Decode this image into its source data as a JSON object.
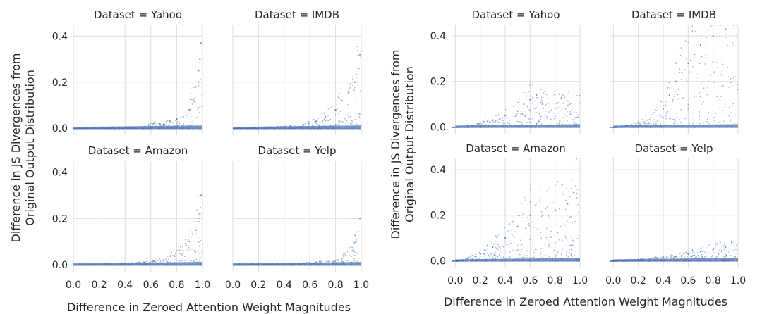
{
  "chart_data": [
    {
      "type": "scatter",
      "figure": "left",
      "xlabel": "Difference in Zeroed Attention Weight Magnitudes",
      "ylabel": "Difference in JS Divergences from Original Output Distribution",
      "xlim": [
        0,
        1
      ],
      "ylim": [
        -0.03,
        0.45
      ],
      "xticks": [
        "0.0",
        "0.2",
        "0.4",
        "0.6",
        "0.8",
        "1.0"
      ],
      "yticks": [
        "0.0",
        "0.2",
        "0.4"
      ],
      "grid": true,
      "panels": [
        {
          "title": "Dataset = Yahoo",
          "points": [
            [
              0.05,
              0.002
            ],
            [
              0.15,
              0.003
            ],
            [
              0.25,
              0.003
            ],
            [
              0.35,
              0.004
            ],
            [
              0.45,
              0.005
            ],
            [
              0.55,
              0.006
            ],
            [
              0.62,
              0.02
            ],
            [
              0.7,
              0.015
            ],
            [
              0.75,
              0.03
            ],
            [
              0.8,
              0.04
            ],
            [
              0.85,
              0.05
            ],
            [
              0.9,
              0.08
            ],
            [
              0.93,
              0.12
            ],
            [
              0.95,
              0.18
            ],
            [
              0.97,
              0.25
            ],
            [
              0.98,
              0.3
            ],
            [
              0.99,
              0.37
            ]
          ]
        },
        {
          "title": "Dataset = IMDB",
          "points": [
            [
              0.05,
              0.002
            ],
            [
              0.15,
              0.003
            ],
            [
              0.25,
              0.004
            ],
            [
              0.35,
              0.006
            ],
            [
              0.45,
              0.01
            ],
            [
              0.55,
              0.015
            ],
            [
              0.65,
              0.03
            ],
            [
              0.72,
              0.05
            ],
            [
              0.8,
              0.08
            ],
            [
              0.85,
              0.12
            ],
            [
              0.9,
              0.16
            ],
            [
              0.95,
              0.2
            ],
            [
              0.98,
              0.26
            ],
            [
              0.99,
              0.32
            ]
          ]
        },
        {
          "title": "Dataset = Amazon",
          "points": [
            [
              0.05,
              0.002
            ],
            [
              0.15,
              0.003
            ],
            [
              0.25,
              0.004
            ],
            [
              0.35,
              0.005
            ],
            [
              0.45,
              0.007
            ],
            [
              0.55,
              0.01
            ],
            [
              0.62,
              0.015
            ],
            [
              0.7,
              0.02
            ],
            [
              0.78,
              0.04
            ],
            [
              0.85,
              0.06
            ],
            [
              0.9,
              0.1
            ],
            [
              0.95,
              0.15
            ],
            [
              0.98,
              0.22
            ],
            [
              0.99,
              0.3
            ]
          ]
        },
        {
          "title": "Dataset = Yelp",
          "points": [
            [
              0.05,
              0.002
            ],
            [
              0.15,
              0.003
            ],
            [
              0.25,
              0.003
            ],
            [
              0.35,
              0.004
            ],
            [
              0.45,
              0.005
            ],
            [
              0.55,
              0.007
            ],
            [
              0.65,
              0.01
            ],
            [
              0.75,
              0.015
            ],
            [
              0.82,
              0.02
            ],
            [
              0.88,
              0.04
            ],
            [
              0.93,
              0.06
            ],
            [
              0.96,
              0.1
            ],
            [
              0.99,
              0.2
            ]
          ]
        }
      ]
    },
    {
      "type": "scatter",
      "figure": "right",
      "xlabel": "Difference in Zeroed Attention Weight Magnitudes",
      "ylabel": "Difference in JS Divergences from Original Output Distribution",
      "xlim": [
        -0.03,
        1
      ],
      "ylim": [
        -0.03,
        0.45
      ],
      "xticks": [
        "0.0",
        "0.2",
        "0.4",
        "0.6",
        "0.8",
        "1.0"
      ],
      "yticks": [
        "0.0",
        "0.2",
        "0.4"
      ],
      "grid": true,
      "panels": [
        {
          "title": "Dataset = Yahoo",
          "points": [
            [
              0.02,
              0.0
            ],
            [
              0.1,
              0.005
            ],
            [
              0.2,
              0.015
            ],
            [
              0.3,
              0.03
            ],
            [
              0.4,
              0.05
            ],
            [
              0.5,
              0.07
            ],
            [
              0.55,
              0.1
            ],
            [
              0.6,
              0.12
            ],
            [
              0.65,
              0.14
            ],
            [
              0.7,
              0.1
            ]
          ]
        },
        {
          "title": "Dataset = IMDB",
          "points": [
            [
              0.02,
              0.0
            ],
            [
              0.1,
              0.005
            ],
            [
              0.2,
              0.02
            ],
            [
              0.3,
              0.04
            ],
            [
              0.4,
              0.08
            ],
            [
              0.45,
              0.14
            ],
            [
              0.5,
              0.2
            ],
            [
              0.55,
              0.24
            ],
            [
              0.6,
              0.28
            ],
            [
              0.65,
              0.32
            ],
            [
              0.7,
              0.36
            ],
            [
              0.8,
              0.4
            ],
            [
              0.9,
              0.43
            ]
          ]
        },
        {
          "title": "Dataset = Amazon",
          "points": [
            [
              0.02,
              0.0
            ],
            [
              0.1,
              0.01
            ],
            [
              0.2,
              0.03
            ],
            [
              0.3,
              0.06
            ],
            [
              0.4,
              0.1
            ],
            [
              0.5,
              0.15
            ],
            [
              0.6,
              0.2
            ],
            [
              0.7,
              0.2
            ],
            [
              0.8,
              0.22
            ],
            [
              0.9,
              0.25
            ],
            [
              0.95,
              0.3
            ]
          ]
        },
        {
          "title": "Dataset = Yelp",
          "points": [
            [
              0.02,
              0.0
            ],
            [
              0.1,
              0.002
            ],
            [
              0.2,
              0.005
            ],
            [
              0.3,
              0.01
            ],
            [
              0.4,
              0.015
            ],
            [
              0.5,
              0.02
            ],
            [
              0.6,
              0.03
            ],
            [
              0.7,
              0.04
            ],
            [
              0.8,
              0.05
            ],
            [
              0.9,
              0.06
            ],
            [
              0.95,
              0.08
            ]
          ]
        }
      ]
    }
  ]
}
